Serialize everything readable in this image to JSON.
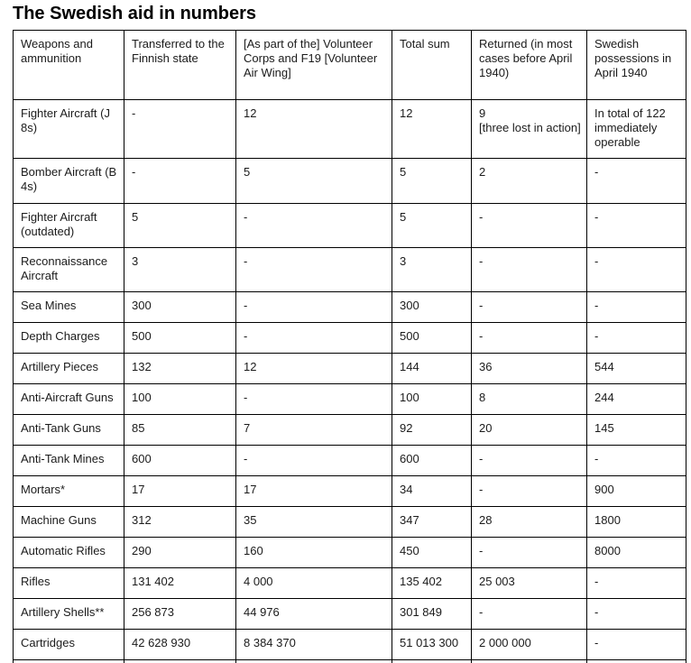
{
  "page": {
    "background_color": "#ffffff",
    "border_color": "#000000",
    "text_color": "#1b1b1b"
  },
  "title": "The Swedish aid in numbers",
  "table": {
    "columns": [
      "Weapons and ammunition",
      "Transferred to the Finnish state",
      "[As part of the] Volunteer Corps and F19 [Volunteer Air Wing]",
      "Total sum",
      "Returned (in most cases before April 1940)",
      "Swedish possessions in April 1940"
    ],
    "rows": [
      [
        "Fighter Aircraft (J 8s)",
        "-",
        "12",
        "12",
        "9\n[three lost in action]",
        "In total of 122 immediately operable"
      ],
      [
        "Bomber Aircraft (B 4s)",
        "-",
        "5",
        "5",
        "2",
        "-"
      ],
      [
        "Fighter Aircraft (outdated)",
        "5",
        "-",
        "5",
        "-",
        "-"
      ],
      [
        "Reconnaissance Aircraft",
        "3",
        "-",
        "3",
        "-",
        "-"
      ],
      [
        "Sea Mines",
        "300",
        "-",
        "300",
        "-",
        "-"
      ],
      [
        "Depth Charges",
        "500",
        "-",
        "500",
        "-",
        "-"
      ],
      [
        "Artillery Pieces",
        "132",
        "12",
        "144",
        "36",
        "544"
      ],
      [
        "Anti-Aircraft Guns",
        "100",
        "-",
        "100",
        "8",
        "244"
      ],
      [
        "Anti-Tank Guns",
        "85",
        "7",
        "92",
        "20",
        "145"
      ],
      [
        "Anti-Tank Mines",
        "600",
        "-",
        "600",
        "-",
        "-"
      ],
      [
        "Mortars*",
        "17",
        "17",
        "34",
        "-",
        "900"
      ],
      [
        "Machine Guns",
        "312",
        "35",
        "347",
        "28",
        "1800"
      ],
      [
        "Automatic Rifles",
        "290",
        "160",
        "450",
        "-",
        "8000"
      ],
      [
        "Rifles",
        "131 402",
        "4 000",
        "135 402",
        "25 003",
        "-"
      ],
      [
        "Artillery Shells**",
        "256 873",
        "44 976",
        "301 849",
        "-",
        "-"
      ],
      [
        "Cartridges",
        "42 628 930",
        "8 384 370",
        "51 013 300",
        "2 000 000",
        "-"
      ]
    ]
  }
}
